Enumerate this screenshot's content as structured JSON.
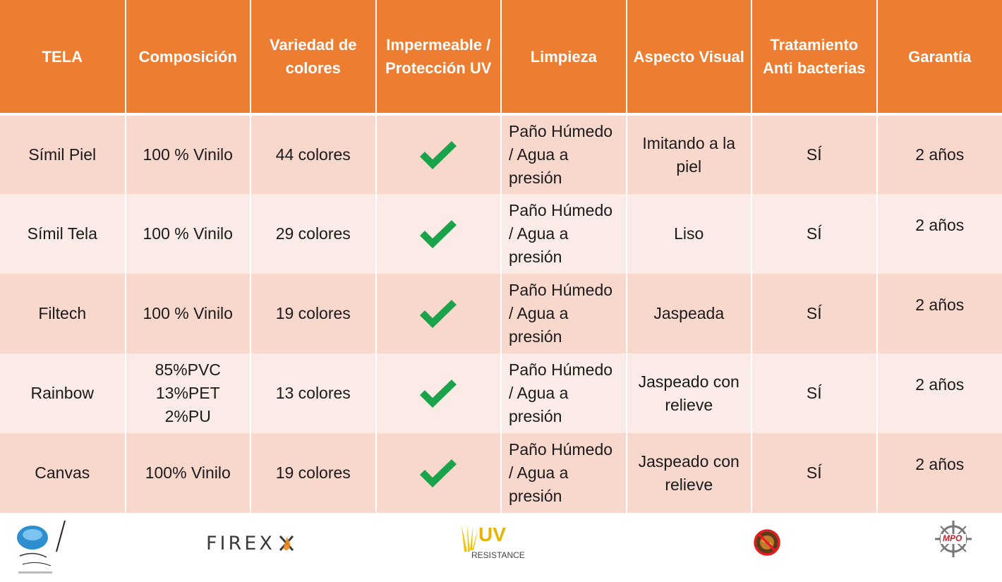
{
  "headers": [
    "TELA",
    "Composición",
    "Variedad de colores",
    "Impermeable / Protección UV",
    "Limpieza",
    "Aspecto Visual",
    "Tratamiento Anti bacterias",
    "Garantía"
  ],
  "rows": [
    {
      "tela": "Símil Piel",
      "composicion": "100 % Vinilo",
      "colores": "44 colores",
      "impermeable": "check-icon",
      "limpieza": "Paño Húmedo / Agua a presión",
      "aspecto": "Imitando a la piel",
      "antibacterias": "SÍ",
      "garantia": "2 años"
    },
    {
      "tela": "Símil Tela",
      "composicion": "100 % Vinilo",
      "colores": "29 colores",
      "impermeable": "check-icon",
      "limpieza": "Paño Húmedo / Agua a presión",
      "aspecto": "Liso",
      "antibacterias": "SÍ",
      "garantia": "2 años"
    },
    {
      "tela": "Filtech",
      "composicion": "100 % Vinilo",
      "colores": "19 colores",
      "impermeable": "check-icon",
      "limpieza": "Paño Húmedo / Agua a presión",
      "aspecto": "Jaspeada",
      "antibacterias": "SÍ",
      "garantia": "2 años"
    },
    {
      "tela": "Rainbow",
      "composicion": "85%PVC 13%PET 2%PU",
      "colores": "13 colores",
      "impermeable": "check-icon",
      "limpieza": "Paño Húmedo / Agua a presión",
      "aspecto": "Jaspeado con relieve",
      "antibacterias": "SÍ",
      "garantia": "2 años"
    },
    {
      "tela": "Canvas",
      "composicion": "100% Vinilo",
      "colores": "19 colores",
      "impermeable": "check-icon",
      "limpieza": "Paño Húmedo / Agua a presión",
      "aspecto": "Jaspeado con relieve",
      "antibacterias": "SÍ",
      "garantia": "2 años"
    }
  ],
  "logos": {
    "firex_text": "FIREX",
    "uv_text": "UV",
    "uv_sub": "RESISTANCE",
    "mpo_text": "MPO"
  },
  "colors": {
    "header_bg": "#ed7d31",
    "row_odd": "#f8d7cc",
    "row_even": "#fbebe6",
    "check": "#1aa34a"
  }
}
